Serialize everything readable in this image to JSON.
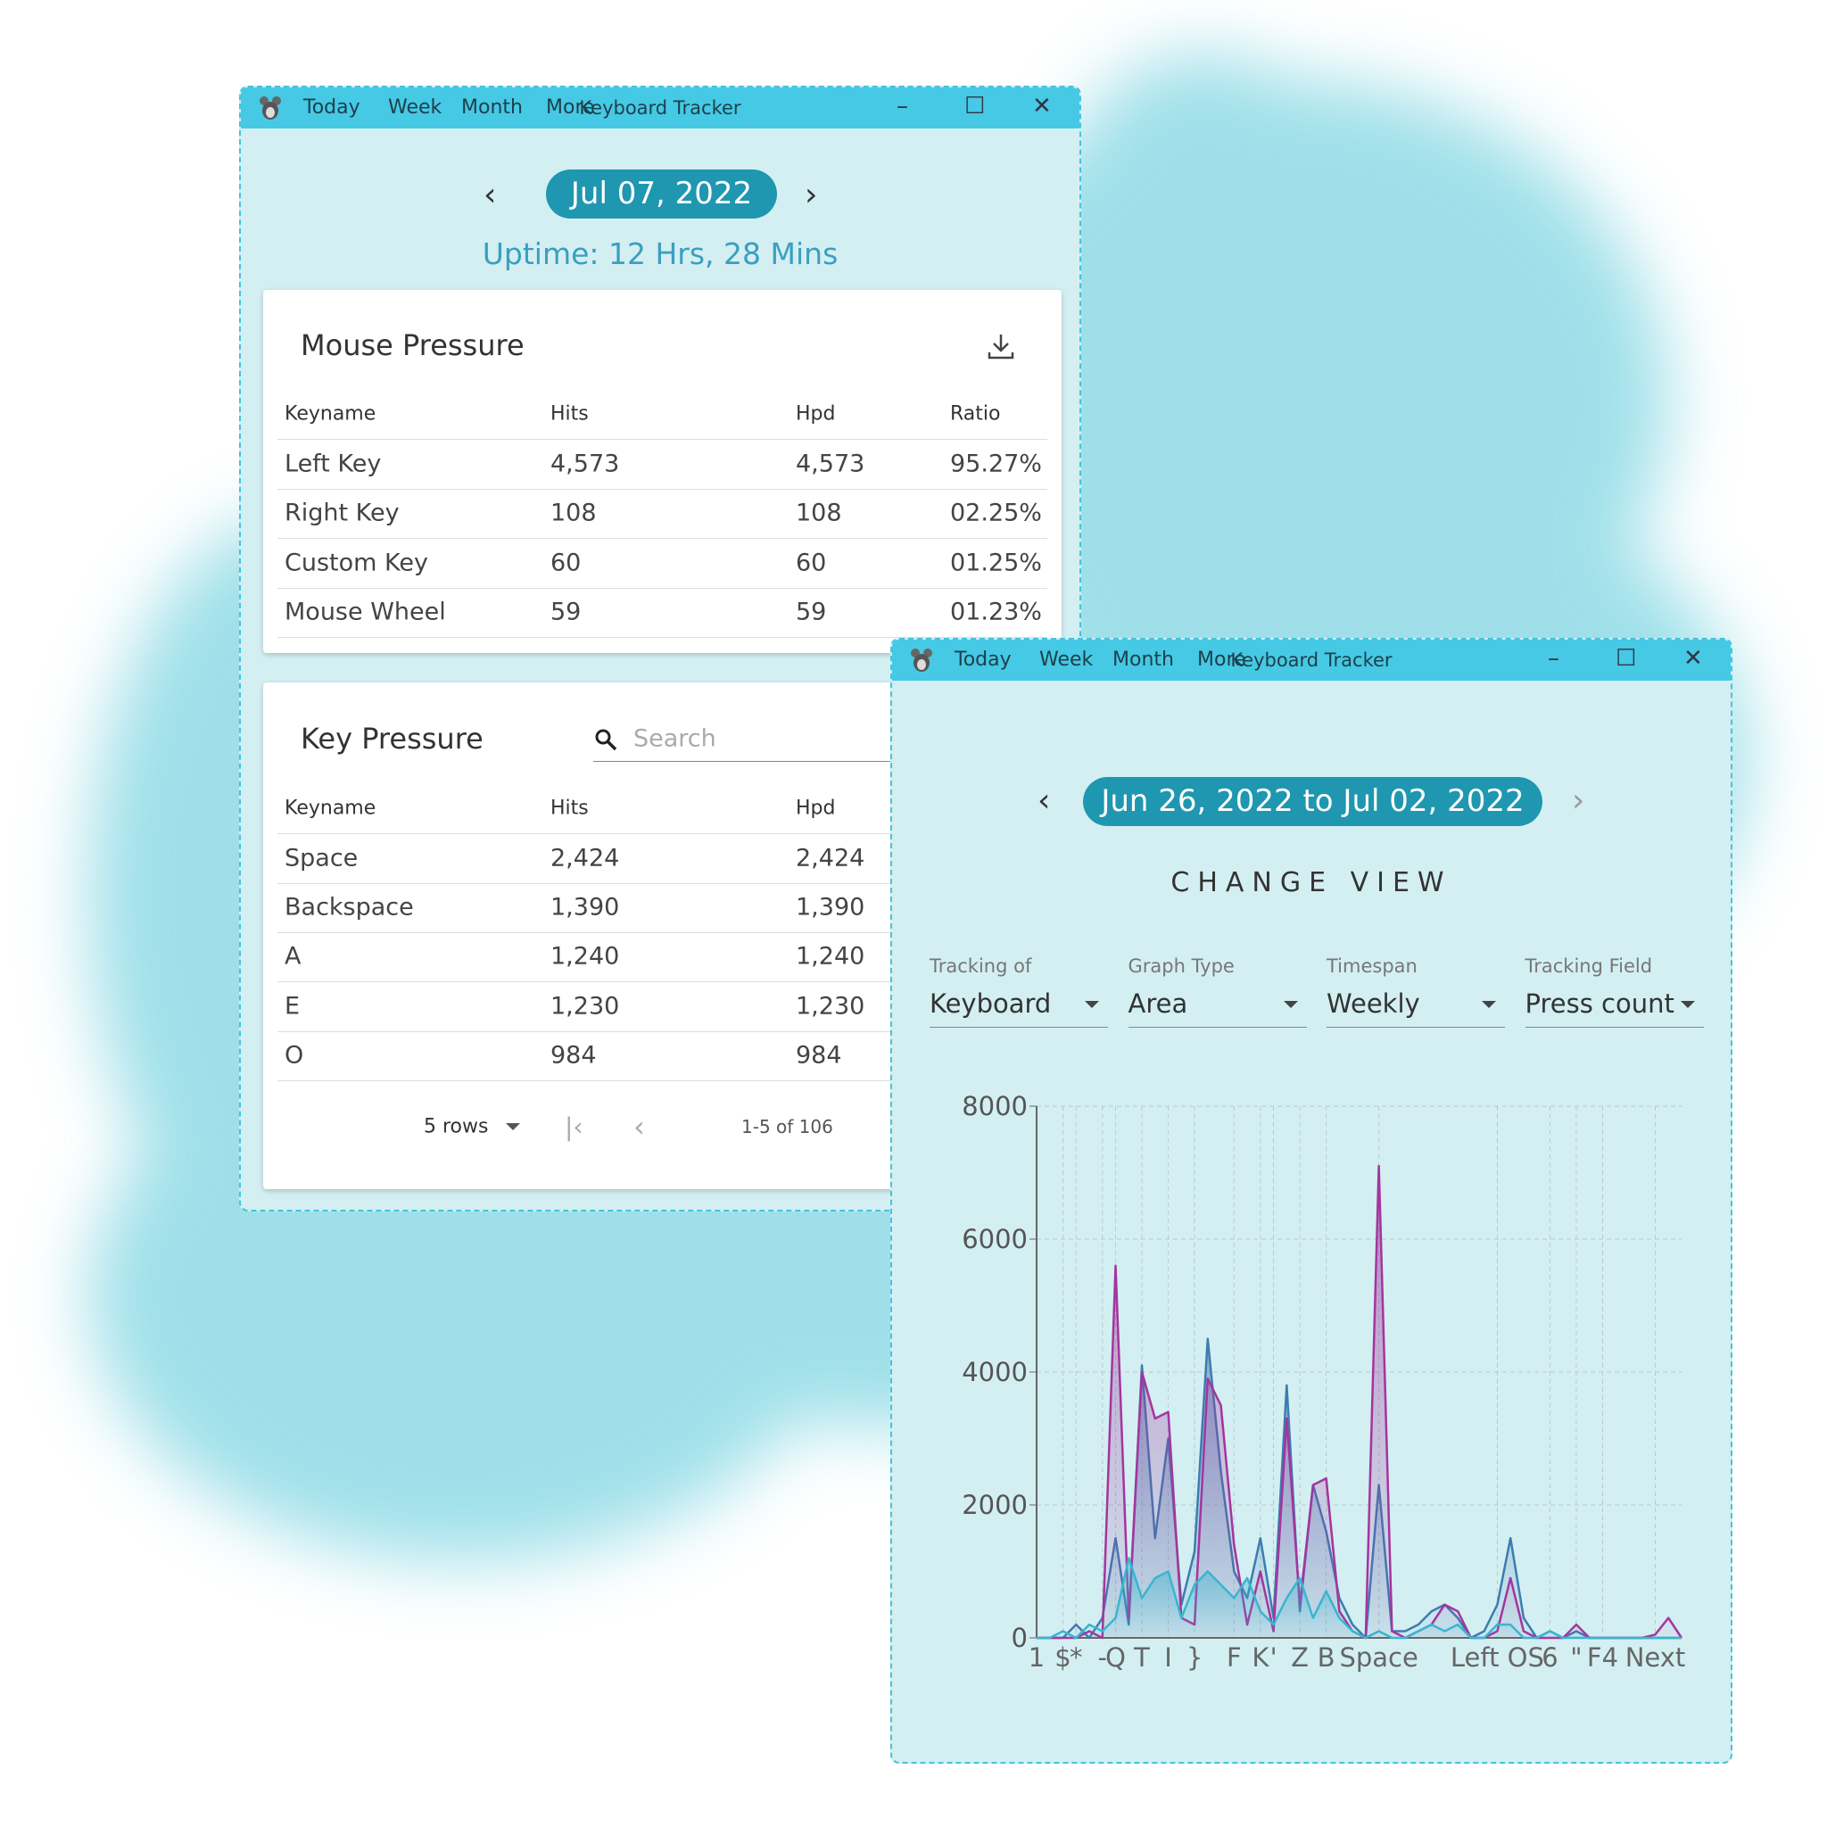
{
  "window1": {
    "menu": [
      "Today",
      "Week",
      "Month",
      "More"
    ],
    "title": "Keyboard Tracker",
    "date": "Jul 07, 2022",
    "uptime": "Uptime: 12 Hrs, 28 Mins",
    "mouse_pressure": {
      "title": "Mouse Pressure",
      "columns": [
        "Keyname",
        "Hits",
        "Hpd",
        "Ratio"
      ],
      "rows": [
        [
          "Left Key",
          "4,573",
          "4,573",
          "95.27%"
        ],
        [
          "Right Key",
          "108",
          "108",
          "02.25%"
        ],
        [
          "Custom Key",
          "60",
          "60",
          "01.25%"
        ],
        [
          "Mouse Wheel",
          "59",
          "59",
          "01.23%"
        ]
      ]
    },
    "key_pressure": {
      "title": "Key Pressure",
      "search_placeholder": "Search",
      "columns": [
        "Keyname",
        "Hits",
        "Hpd"
      ],
      "rows": [
        [
          "Space",
          "2,424",
          "2,424"
        ],
        [
          "Backspace",
          "1,390",
          "1,390"
        ],
        [
          "A",
          "1,240",
          "1,240"
        ],
        [
          "E",
          "1,230",
          "1,230"
        ],
        [
          "O",
          "984",
          "984"
        ]
      ],
      "rows_per_page": "5 rows",
      "pagination": "1-5 of 106"
    }
  },
  "window2": {
    "menu": [
      "Today",
      "Week",
      "Month",
      "More"
    ],
    "title": "Keyboard Tracker",
    "date_range": "Jun 26, 2022 to Jul 02, 2022",
    "change_view": "CHANGE VIEW",
    "fields": [
      {
        "label": "Tracking of",
        "value": "Keyboard"
      },
      {
        "label": "Graph Type",
        "value": "Area"
      },
      {
        "label": "Timespan",
        "value": "Weekly"
      },
      {
        "label": "Tracking Field",
        "value": "Press count"
      }
    ],
    "chart_data": {
      "type": "area",
      "categories": [
        "1",
        null,
        "$",
        "*",
        null,
        "-",
        "Q",
        null,
        "T",
        null,
        "I",
        null,
        "}",
        null,
        null,
        "F",
        null,
        "K",
        "'",
        null,
        "Z",
        null,
        "B",
        null,
        null,
        null,
        "Space",
        null,
        null,
        null,
        null,
        null,
        null,
        null,
        null,
        "Left OS",
        null,
        null,
        null,
        "6",
        null,
        "\"",
        null,
        "F4",
        null,
        null,
        null,
        "Next",
        null,
        null
      ],
      "series": [
        {
          "color": "#3d7cb0",
          "values": [
            0,
            0,
            0,
            200,
            0,
            300,
            1500,
            200,
            4100,
            1500,
            3000,
            500,
            1300,
            4500,
            2500,
            1000,
            600,
            1500,
            300,
            3800,
            400,
            2300,
            1600,
            600,
            200,
            0,
            2300,
            100,
            100,
            200,
            400,
            500,
            300,
            0,
            100,
            500,
            1500,
            300,
            0,
            100,
            0,
            100,
            0,
            0,
            0,
            0,
            0,
            0,
            0,
            0
          ]
        },
        {
          "color": "#a4359e",
          "values": [
            0,
            0,
            0,
            0,
            100,
            0,
            5600,
            300,
            4000,
            3300,
            3400,
            300,
            200,
            3900,
            3500,
            1400,
            200,
            1000,
            100,
            3300,
            500,
            2300,
            2400,
            400,
            100,
            0,
            7100,
            100,
            0,
            100,
            200,
            500,
            400,
            0,
            0,
            100,
            900,
            100,
            0,
            0,
            0,
            200,
            0,
            0,
            0,
            0,
            0,
            50,
            300,
            0
          ]
        },
        {
          "color": "#38b6cf",
          "values": [
            0,
            0,
            100,
            0,
            200,
            100,
            300,
            1200,
            600,
            900,
            1000,
            300,
            800,
            1000,
            800,
            600,
            900,
            400,
            200,
            600,
            900,
            300,
            700,
            300,
            100,
            0,
            100,
            0,
            0,
            100,
            200,
            100,
            200,
            0,
            0,
            200,
            200,
            0,
            0,
            100,
            0,
            0,
            0,
            0,
            0,
            0,
            0,
            0,
            0,
            0
          ]
        }
      ],
      "ylim": [
        0,
        8000
      ],
      "yticks": [
        0,
        2000,
        4000,
        6000,
        8000
      ],
      "grid": true
    }
  }
}
